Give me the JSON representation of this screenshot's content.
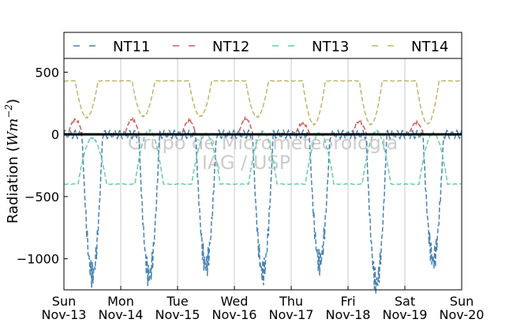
{
  "chart_data": {
    "type": "line",
    "title": "",
    "ylabel": "Radiation (Wm^-2)",
    "ylabel_parts": {
      "prefix": "Radiation (",
      "unit": "Wm",
      "exp": "−2",
      "suffix": ")"
    },
    "xlabel": "",
    "ylim": [
      -1250,
      820
    ],
    "xlim": [
      0,
      7
    ],
    "grid": "vertical",
    "legend_position": "top",
    "yticks": [
      {
        "value": 500,
        "label": "500"
      },
      {
        "value": 0,
        "label": "0"
      },
      {
        "value": -500,
        "label": "−500"
      },
      {
        "value": -1000,
        "label": "−1000"
      }
    ],
    "xticks": [
      {
        "value": 0,
        "day": "Sun",
        "date": "Nov-13"
      },
      {
        "value": 1,
        "day": "Mon",
        "date": "Nov-14"
      },
      {
        "value": 2,
        "day": "Tue",
        "date": "Nov-15"
      },
      {
        "value": 3,
        "day": "Wed",
        "date": "Nov-16"
      },
      {
        "value": 4,
        "day": "Thu",
        "date": "Nov-17"
      },
      {
        "value": 5,
        "day": "Fri",
        "date": "Nov-18"
      },
      {
        "value": 6,
        "day": "Sat",
        "date": "Nov-19"
      },
      {
        "value": 7,
        "day": "Sun",
        "date": "Nov-20"
      }
    ],
    "watermark": [
      "Grupo de Micrometeorologia",
      "IAG / USP"
    ],
    "series": [
      {
        "name": "NT11",
        "color": "#4682b4",
        "baseline": 0,
        "peak": [
          -1130,
          -1140,
          -1060,
          -1110,
          -1030,
          -1200,
          -1010
        ],
        "ripple": 220,
        "peak_at": 0.5,
        "width": 0.36
      },
      {
        "name": "NT12",
        "color": "#cd5c5c",
        "baseline": 0,
        "peak": [
          120,
          120,
          110,
          125,
          90,
          100,
          95
        ],
        "ripple": 20,
        "peak_at": 0.2,
        "width": 0.25
      },
      {
        "name": "NT13",
        "color": "#66cdaa",
        "baseline": -400,
        "peak": [
          -30,
          30,
          0,
          20,
          10,
          25,
          10
        ],
        "ripple": 15,
        "peak_at": 0.5,
        "width": 0.5
      },
      {
        "name": "NT14",
        "color": "#bdb76b",
        "baseline": 430,
        "peak": [
          135,
          145,
          145,
          140,
          80,
          80,
          85
        ],
        "ripple": 10,
        "peak_at": 0.4,
        "width": 0.4
      }
    ],
    "zero_line": 0
  }
}
